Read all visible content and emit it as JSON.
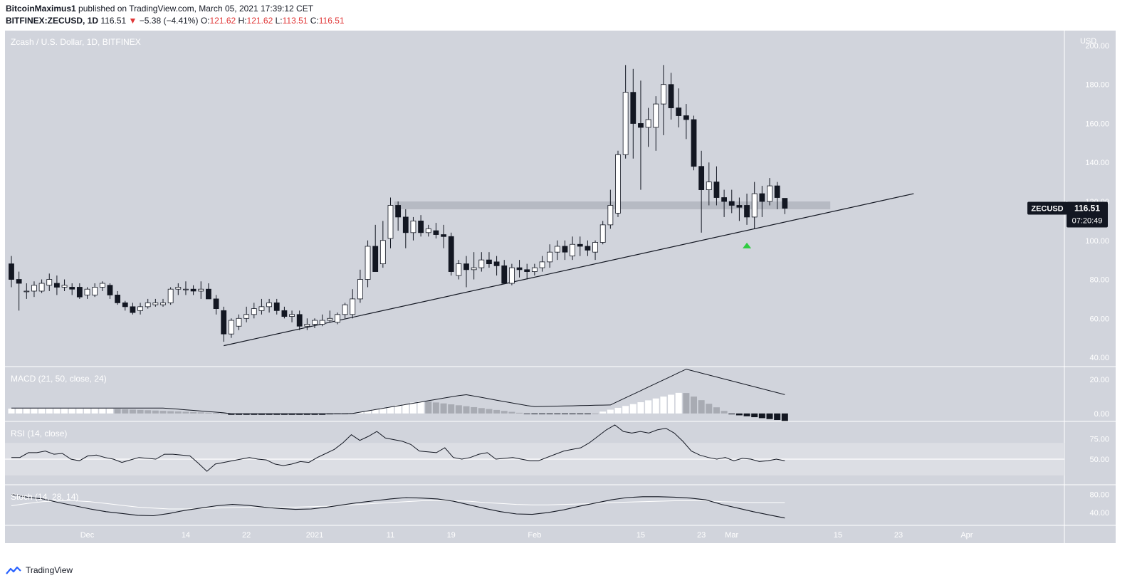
{
  "header": {
    "author": "BitcoinMaximus1",
    "published_text": "published on TradingView.com, March 05, 2021 17:39:12 CET",
    "symbol": "BITFINEX:ZECUSD, 1D",
    "last": "116.51",
    "change_arrow": "▼",
    "change": "−5.38 (−4.41%)",
    "o_label": "O:",
    "o_value": "121.62",
    "h_label": "H:",
    "h_value": "121.62",
    "l_label": "L:",
    "l_value": "113.51",
    "c_label": "C:",
    "c_value": "116.51"
  },
  "colors": {
    "background": "#d1d4dc",
    "up_candle": "#ffffff",
    "down_candle": "#131722",
    "support_zone": "#b2b5be",
    "trendline": "#131722",
    "green_marker": "#2ecc40",
    "price_tag": "#131722"
  },
  "chart_data": [
    {
      "type": "candlestick",
      "title": "Zcash / U.S. Dollar, 1D, BITFINEX",
      "currency_label": "USD",
      "y_ticks": [
        "40.00",
        "60.00",
        "80.00",
        "100.00",
        "120.00",
        "140.00",
        "160.00",
        "180.00",
        "200.00"
      ],
      "ylim": [
        36,
        204
      ],
      "x_ticks": [
        "Dec",
        "14",
        "22",
        "2021",
        "11",
        "19",
        "Feb",
        "15",
        "23",
        "Mar",
        "15",
        "23",
        "Apr"
      ],
      "x_ticks_index": [
        5,
        18,
        26,
        35,
        45,
        53,
        64,
        78,
        86,
        90,
        104,
        112,
        121
      ],
      "dates_note": "",
      "candles": [
        [
          -5,
          88,
          92,
          76,
          80
        ],
        [
          -4,
          80,
          84,
          64,
          78
        ],
        [
          -3,
          74,
          78,
          70,
          74
        ],
        [
          -2,
          74,
          79,
          71,
          77
        ],
        [
          -1,
          74,
          80,
          73,
          78
        ],
        [
          0,
          77,
          83,
          74,
          80
        ],
        [
          1,
          78,
          82,
          72,
          76
        ],
        [
          2,
          76,
          80,
          74,
          77
        ],
        [
          3,
          76,
          78,
          72,
          75
        ],
        [
          4,
          76,
          78,
          70,
          71
        ],
        [
          5,
          72,
          76,
          70,
          75
        ],
        [
          6,
          72,
          78,
          71,
          76
        ],
        [
          7,
          76,
          79,
          74,
          78
        ],
        [
          8,
          77,
          78,
          70,
          72
        ],
        [
          9,
          72,
          74,
          67,
          68
        ],
        [
          10,
          68,
          69,
          64,
          66
        ],
        [
          11,
          66,
          68,
          62,
          63
        ],
        [
          12,
          64,
          68,
          62,
          66
        ],
        [
          13,
          66,
          70,
          65,
          68
        ],
        [
          14,
          67,
          70,
          66,
          68
        ],
        [
          15,
          67,
          70,
          66,
          68
        ],
        [
          16,
          68,
          76,
          67,
          75
        ],
        [
          17,
          75,
          78,
          72,
          76
        ],
        [
          18,
          75,
          79,
          72,
          75
        ],
        [
          19,
          75,
          77,
          72,
          74
        ],
        [
          20,
          74,
          79,
          70,
          75
        ],
        [
          21,
          75,
          78,
          70,
          70
        ],
        [
          22,
          70,
          72,
          62,
          65
        ],
        [
          23,
          64,
          66,
          48,
          52
        ],
        [
          24,
          52,
          60,
          50,
          59
        ],
        [
          25,
          56,
          62,
          54,
          60
        ],
        [
          26,
          60,
          66,
          58,
          62
        ],
        [
          27,
          62,
          68,
          60,
          65
        ],
        [
          28,
          64,
          70,
          62,
          66
        ],
        [
          29,
          66,
          70,
          63,
          68
        ],
        [
          30,
          68,
          70,
          62,
          64
        ],
        [
          31,
          64,
          66,
          60,
          61
        ],
        [
          32,
          61,
          64,
          58,
          62
        ],
        [
          33,
          62,
          64,
          54,
          56
        ],
        [
          34,
          56,
          60,
          54,
          57
        ],
        [
          35,
          57,
          60,
          55,
          59
        ],
        [
          36,
          57,
          62,
          56,
          59
        ],
        [
          37,
          59,
          64,
          58,
          60
        ],
        [
          38,
          58,
          63,
          57,
          62
        ],
        [
          39,
          62,
          68,
          60,
          67
        ],
        [
          40,
          62,
          75,
          60,
          70
        ],
        [
          41,
          70,
          85,
          68,
          80
        ],
        [
          42,
          80,
          100,
          76,
          97
        ],
        [
          43,
          97,
          108,
          84,
          84
        ],
        [
          44,
          88,
          110,
          86,
          100
        ],
        [
          45,
          101,
          122,
          96,
          118
        ],
        [
          46,
          118,
          120,
          105,
          112
        ],
        [
          47,
          112,
          116,
          96,
          104
        ],
        [
          48,
          104,
          112,
          100,
          110
        ],
        [
          49,
          110,
          113,
          102,
          104
        ],
        [
          50,
          104,
          108,
          102,
          106
        ],
        [
          51,
          105,
          109,
          101,
          103
        ],
        [
          52,
          103,
          108,
          96,
          102
        ],
        [
          53,
          102,
          104,
          82,
          84
        ],
        [
          54,
          82,
          90,
          80,
          88
        ],
        [
          55,
          88,
          92,
          76,
          85
        ],
        [
          56,
          85,
          94,
          80,
          86
        ],
        [
          57,
          86,
          94,
          84,
          90
        ],
        [
          58,
          90,
          94,
          86,
          88
        ],
        [
          59,
          89,
          92,
          82,
          87
        ],
        [
          60,
          87,
          90,
          78,
          78
        ],
        [
          61,
          78,
          88,
          77,
          86
        ],
        [
          62,
          86,
          90,
          81,
          85
        ],
        [
          63,
          85,
          88,
          80,
          84
        ],
        [
          64,
          84,
          88,
          82,
          86
        ],
        [
          65,
          86,
          92,
          84,
          89
        ],
        [
          66,
          89,
          98,
          86,
          94
        ],
        [
          67,
          94,
          100,
          90,
          97
        ],
        [
          68,
          97,
          100,
          90,
          94
        ],
        [
          69,
          92,
          102,
          90,
          98
        ],
        [
          70,
          98,
          102,
          92,
          97
        ],
        [
          71,
          97,
          100,
          92,
          95
        ],
        [
          72,
          94,
          100,
          90,
          99
        ],
        [
          73,
          99,
          110,
          98,
          108
        ],
        [
          74,
          108,
          126,
          106,
          118
        ],
        [
          75,
          114,
          146,
          112,
          144
        ],
        [
          76,
          144,
          190,
          142,
          176
        ],
        [
          77,
          176,
          188,
          142,
          160
        ],
        [
          78,
          160,
          182,
          126,
          158
        ],
        [
          79,
          158,
          168,
          148,
          162
        ],
        [
          80,
          158,
          174,
          146,
          170
        ],
        [
          81,
          170,
          190,
          154,
          180
        ],
        [
          82,
          180,
          186,
          162,
          168
        ],
        [
          83,
          168,
          178,
          158,
          164
        ],
        [
          84,
          164,
          170,
          152,
          162
        ],
        [
          85,
          162,
          164,
          136,
          138
        ],
        [
          86,
          138,
          146,
          104,
          126
        ],
        [
          87,
          126,
          140,
          118,
          130
        ],
        [
          88,
          130,
          138,
          118,
          122
        ],
        [
          89,
          122,
          126,
          112,
          120
        ],
        [
          90,
          120,
          126,
          114,
          118
        ],
        [
          91,
          118,
          122,
          110,
          117
        ],
        [
          92,
          118,
          124,
          108,
          112
        ],
        [
          93,
          112,
          130,
          106,
          124
        ],
        [
          94,
          124,
          128,
          112,
          120
        ],
        [
          95,
          120,
          132,
          118,
          128
        ],
        [
          96,
          128,
          130,
          116,
          122
        ],
        [
          97,
          121.62,
          121.62,
          113.51,
          116.51
        ]
      ],
      "support_zone": [
        116,
        120
      ],
      "trendline_note": "Ascending support line",
      "last_price_tag": "ZECUSD",
      "last_price": "116.51",
      "countdown": "07:20:49",
      "marker": "green up triangle below low"
    },
    {
      "type": "histogram+line",
      "title": "MACD (21, 50, close, 24)",
      "y_ticks": [
        "20.00",
        "0.00"
      ],
      "ylim": [
        -3,
        25
      ]
    },
    {
      "type": "line",
      "title": "RSI (14, close)",
      "y_ticks": [
        "75.00",
        "50.00"
      ],
      "ylim": [
        22,
        92
      ],
      "band": [
        30,
        70
      ]
    },
    {
      "type": "line",
      "title": "Stoch (14, 28, 14)",
      "y_ticks": [
        "80.00",
        "40.00"
      ],
      "ylim": [
        15,
        95
      ]
    }
  ],
  "footer": {
    "brand": "TradingView"
  }
}
